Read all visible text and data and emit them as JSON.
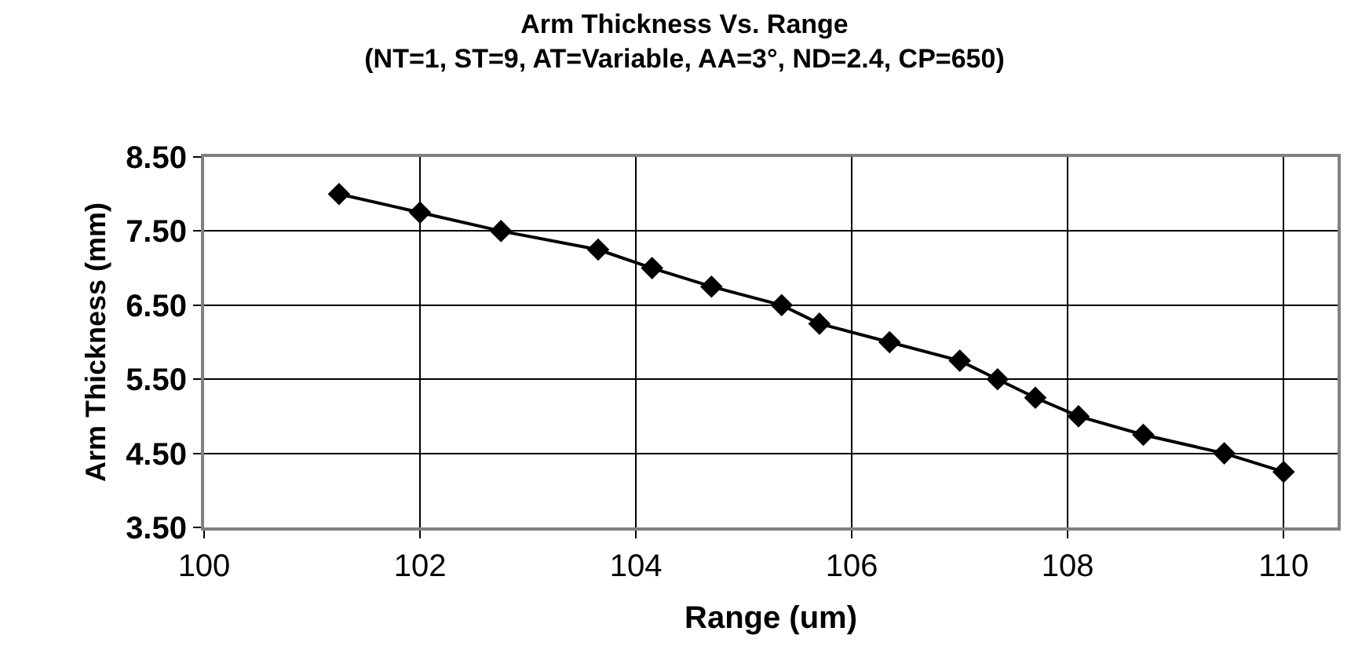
{
  "chart_data": {
    "type": "line",
    "title": "Arm Thickness Vs. Range",
    "subtitle": "(NT=1, ST=9, AT=Variable, AA=3°, ND=2.4, CP=650)",
    "xlabel": "Range (um)",
    "ylabel": "Arm Thickness (mm)",
    "x": [
      101.25,
      102.0,
      102.75,
      103.65,
      104.15,
      104.7,
      105.35,
      105.7,
      106.35,
      107.0,
      107.35,
      107.7,
      108.1,
      108.7,
      109.45,
      110.0
    ],
    "series": [
      {
        "color": "#000000",
        "values": [
          8.0,
          7.75,
          7.5,
          7.25,
          7.0,
          6.75,
          6.5,
          6.25,
          6.0,
          5.75,
          5.5,
          5.25,
          5.0,
          4.75,
          4.5,
          4.25
        ]
      }
    ],
    "xlim": [
      100,
      110.5
    ],
    "xticks": [
      100,
      102,
      104,
      106,
      108,
      110
    ],
    "ylim": [
      3.5,
      8.5
    ],
    "yticks": [
      {
        "value": 3.5,
        "label": "3.50"
      },
      {
        "value": 4.5,
        "label": "4.50"
      },
      {
        "value": 5.5,
        "label": "5.50"
      },
      {
        "value": 6.5,
        "label": "6.50"
      },
      {
        "value": 7.5,
        "label": "7.50"
      },
      {
        "value": 8.5,
        "label": "8.50"
      }
    ],
    "grid": true,
    "marker": "diamond",
    "line_style": "solid",
    "legend": false
  }
}
